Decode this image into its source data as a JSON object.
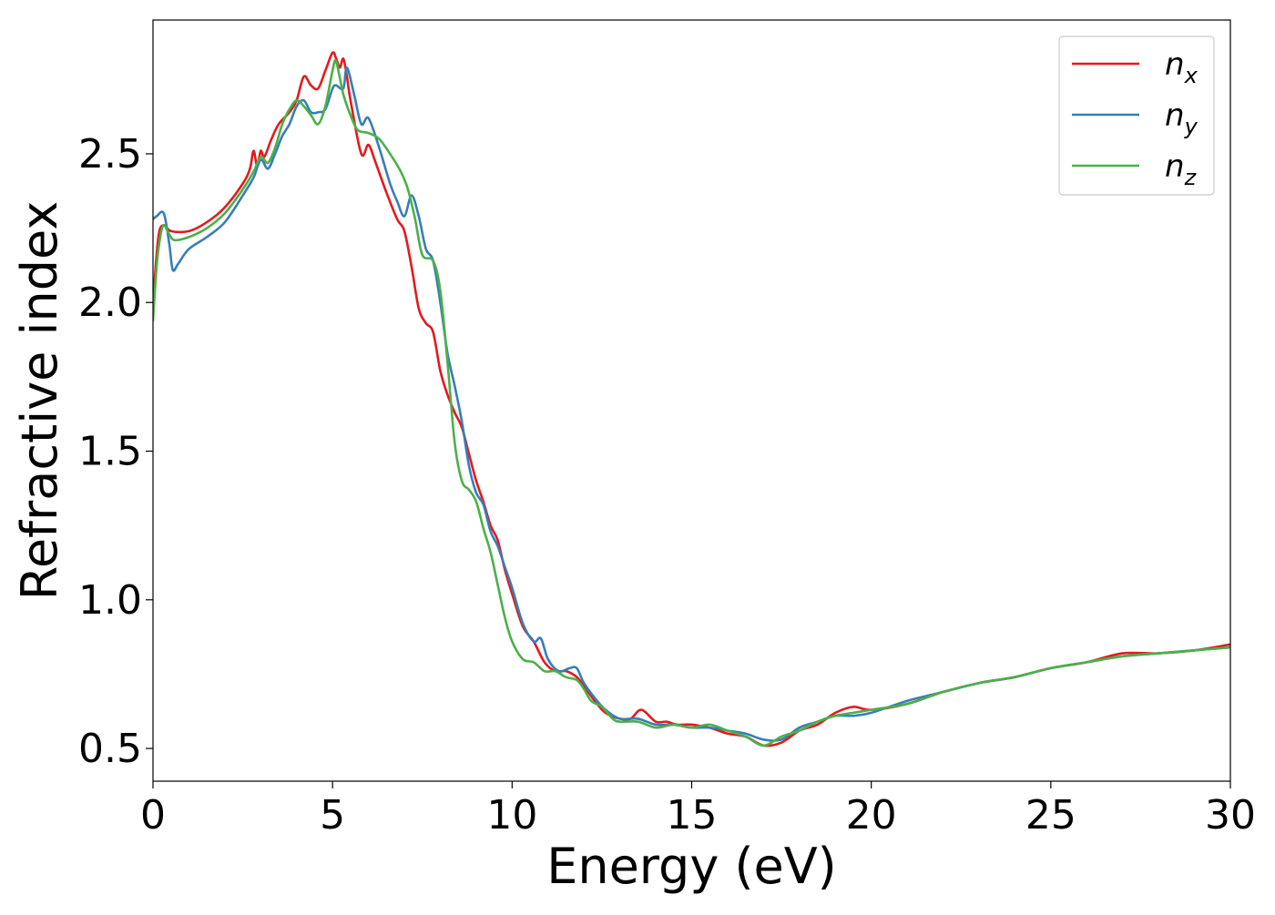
{
  "chart_data": {
    "type": "line",
    "title": "",
    "xlabel": "Energy (eV)",
    "ylabel": "Refractive index",
    "xlim": [
      0,
      30
    ],
    "ylim": [
      0.39,
      2.95
    ],
    "grid": false,
    "legend_position": "top-right",
    "x_ticks": [
      "0",
      "5",
      "10",
      "15",
      "20",
      "25",
      "30"
    ],
    "y_ticks": [
      "0.5",
      "1.0",
      "1.5",
      "2.0",
      "2.5"
    ],
    "series": [
      {
        "name": "n",
        "subscript": "x",
        "color": "#e41a1c",
        "x": [
          0,
          0.15,
          0.3,
          0.5,
          1.0,
          1.5,
          2.0,
          2.5,
          2.7,
          2.8,
          2.9,
          3.0,
          3.1,
          3.3,
          3.5,
          3.8,
          4.0,
          4.2,
          4.4,
          4.6,
          4.8,
          5.0,
          5.1,
          5.2,
          5.3,
          5.4,
          5.5,
          5.8,
          6.0,
          6.2,
          6.5,
          6.8,
          7.0,
          7.2,
          7.4,
          7.6,
          7.8,
          8.0,
          8.2,
          8.4,
          8.6,
          8.8,
          9.0,
          9.2,
          9.4,
          9.6,
          9.8,
          10.0,
          10.3,
          10.6,
          10.9,
          11.2,
          11.5,
          11.8,
          12.0,
          12.3,
          12.6,
          13.0,
          13.3,
          13.6,
          14.0,
          14.3,
          14.6,
          15.0,
          15.5,
          16.0,
          16.5,
          17.0,
          17.5,
          18.0,
          18.5,
          19.0,
          19.5,
          20.0,
          21.0,
          22.0,
          23.0,
          24.0,
          25.0,
          26.0,
          27.0,
          28.0,
          29.0,
          30.0
        ],
        "values": [
          2.0,
          2.22,
          2.26,
          2.24,
          2.24,
          2.27,
          2.32,
          2.4,
          2.45,
          2.51,
          2.46,
          2.51,
          2.49,
          2.55,
          2.6,
          2.64,
          2.68,
          2.76,
          2.73,
          2.72,
          2.78,
          2.84,
          2.82,
          2.79,
          2.82,
          2.76,
          2.68,
          2.5,
          2.53,
          2.47,
          2.37,
          2.28,
          2.24,
          2.12,
          1.98,
          1.93,
          1.9,
          1.77,
          1.69,
          1.63,
          1.58,
          1.49,
          1.4,
          1.33,
          1.25,
          1.2,
          1.1,
          1.02,
          0.91,
          0.86,
          0.79,
          0.76,
          0.76,
          0.74,
          0.71,
          0.66,
          0.62,
          0.6,
          0.6,
          0.63,
          0.59,
          0.59,
          0.58,
          0.58,
          0.57,
          0.55,
          0.54,
          0.51,
          0.52,
          0.56,
          0.58,
          0.62,
          0.64,
          0.63,
          0.65,
          0.69,
          0.72,
          0.74,
          0.77,
          0.79,
          0.82,
          0.82,
          0.83,
          0.85
        ]
      },
      {
        "name": "n",
        "subscript": "y",
        "color": "#377eb8",
        "x": [
          0,
          0.1,
          0.3,
          0.45,
          0.55,
          0.7,
          1.0,
          1.5,
          2.0,
          2.5,
          2.8,
          3.0,
          3.2,
          3.4,
          3.6,
          3.8,
          4.0,
          4.2,
          4.4,
          4.6,
          4.8,
          5.0,
          5.1,
          5.3,
          5.4,
          5.6,
          5.8,
          6.0,
          6.3,
          6.6,
          6.8,
          7.0,
          7.2,
          7.4,
          7.6,
          7.8,
          8.0,
          8.2,
          8.4,
          8.6,
          8.8,
          9.0,
          9.2,
          9.4,
          9.6,
          9.8,
          10.0,
          10.3,
          10.6,
          10.8,
          11.0,
          11.3,
          11.6,
          11.8,
          12.0,
          12.3,
          12.6,
          13.0,
          13.5,
          14.0,
          14.5,
          15.0,
          15.5,
          16.0,
          16.5,
          17.0,
          17.5,
          18.0,
          18.5,
          19.0,
          19.5,
          20.0,
          21.0,
          22.0,
          23.0,
          24.0,
          25.0,
          26.0,
          27.0,
          28.0,
          29.0,
          30.0
        ],
        "values": [
          2.28,
          2.29,
          2.3,
          2.2,
          2.11,
          2.13,
          2.18,
          2.22,
          2.27,
          2.36,
          2.42,
          2.48,
          2.45,
          2.5,
          2.56,
          2.6,
          2.66,
          2.68,
          2.64,
          2.64,
          2.65,
          2.72,
          2.73,
          2.72,
          2.79,
          2.7,
          2.6,
          2.62,
          2.52,
          2.4,
          2.34,
          2.29,
          2.36,
          2.29,
          2.18,
          2.14,
          2.0,
          1.83,
          1.72,
          1.6,
          1.45,
          1.36,
          1.32,
          1.23,
          1.18,
          1.11,
          1.04,
          0.92,
          0.86,
          0.87,
          0.8,
          0.76,
          0.77,
          0.77,
          0.72,
          0.67,
          0.63,
          0.6,
          0.6,
          0.58,
          0.58,
          0.57,
          0.57,
          0.56,
          0.55,
          0.53,
          0.53,
          0.57,
          0.59,
          0.61,
          0.61,
          0.62,
          0.66,
          0.69,
          0.72,
          0.74,
          0.77,
          0.79,
          0.81,
          0.82,
          0.83,
          0.84
        ]
      },
      {
        "name": "n",
        "subscript": "z",
        "color": "#4daf4a",
        "x": [
          0,
          0.1,
          0.2,
          0.3,
          0.45,
          0.6,
          1.0,
          1.5,
          2.0,
          2.5,
          2.8,
          3.0,
          3.2,
          3.4,
          3.6,
          3.8,
          4.0,
          4.2,
          4.4,
          4.6,
          4.8,
          5.0,
          5.1,
          5.3,
          5.5,
          5.7,
          6.0,
          6.3,
          6.6,
          6.9,
          7.1,
          7.3,
          7.5,
          7.8,
          8.0,
          8.2,
          8.4,
          8.6,
          8.8,
          9.0,
          9.2,
          9.4,
          9.6,
          9.8,
          10.0,
          10.3,
          10.6,
          10.9,
          11.2,
          11.5,
          11.8,
          12.0,
          12.2,
          12.5,
          12.8,
          13.0,
          13.5,
          14.0,
          14.5,
          15.0,
          15.5,
          16.0,
          16.5,
          17.0,
          17.5,
          18.0,
          18.5,
          19.0,
          19.5,
          20.0,
          21.0,
          22.0,
          23.0,
          24.0,
          25.0,
          26.0,
          27.0,
          28.0,
          29.0,
          30.0
        ],
        "values": [
          1.94,
          2.12,
          2.22,
          2.26,
          2.23,
          2.21,
          2.22,
          2.25,
          2.3,
          2.38,
          2.44,
          2.49,
          2.47,
          2.52,
          2.6,
          2.65,
          2.68,
          2.66,
          2.63,
          2.6,
          2.66,
          2.78,
          2.81,
          2.7,
          2.63,
          2.58,
          2.57,
          2.55,
          2.5,
          2.44,
          2.38,
          2.28,
          2.16,
          2.14,
          2.04,
          1.8,
          1.53,
          1.4,
          1.37,
          1.33,
          1.24,
          1.16,
          1.05,
          0.94,
          0.86,
          0.8,
          0.79,
          0.76,
          0.76,
          0.74,
          0.73,
          0.7,
          0.66,
          0.64,
          0.6,
          0.59,
          0.59,
          0.57,
          0.58,
          0.57,
          0.58,
          0.56,
          0.54,
          0.51,
          0.54,
          0.56,
          0.59,
          0.61,
          0.62,
          0.63,
          0.65,
          0.69,
          0.72,
          0.74,
          0.77,
          0.79,
          0.81,
          0.82,
          0.83,
          0.84
        ]
      }
    ]
  }
}
